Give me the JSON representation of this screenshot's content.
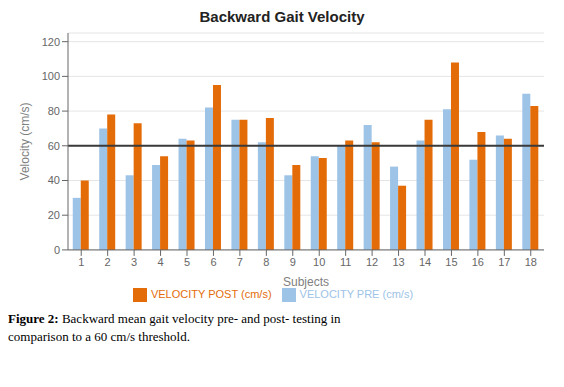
{
  "chart_data": {
    "type": "bar",
    "title": "Backward Gait Velocity",
    "xlabel": "Subjects",
    "ylabel": "Velocity (cm/s)",
    "categories": [
      "1",
      "2",
      "3",
      "4",
      "5",
      "6",
      "7",
      "8",
      "9",
      "10",
      "11",
      "12",
      "13",
      "14",
      "15",
      "16",
      "17",
      "18"
    ],
    "series": [
      {
        "name": "VELOCITY PRE (cm/s)",
        "color": "#9DC3E6",
        "values": [
          30,
          70,
          43,
          49,
          64,
          82,
          75,
          62,
          43,
          54,
          60,
          72,
          48,
          63,
          81,
          52,
          66,
          90
        ]
      },
      {
        "name": "VELOCITY POST (cm/s)",
        "color": "#E36C09",
        "values": [
          40,
          78,
          73,
          54,
          63,
          95,
          75,
          76,
          49,
          53,
          63,
          62,
          37,
          75,
          108,
          68,
          64,
          83
        ]
      }
    ],
    "ylim": [
      0,
      125
    ],
    "yticks": [
      0,
      20,
      40,
      60,
      80,
      100,
      120
    ],
    "grid": true,
    "legend": "bottom",
    "reference_line": {
      "y": 60,
      "color": "#3A3A3A"
    },
    "annotations": [
      "Figure 2:",
      "Backward mean gait velocity pre- and post- testing in",
      "comparison to a 60 cm/s threshold."
    ]
  }
}
